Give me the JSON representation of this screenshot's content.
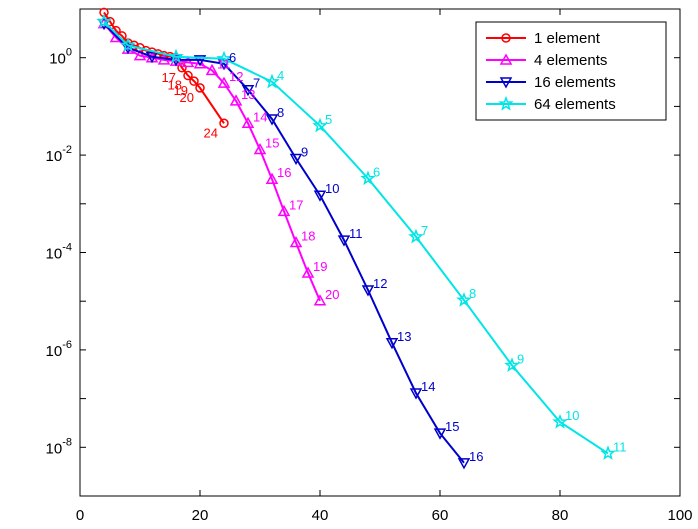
{
  "chart_data": {
    "type": "line",
    "y_scale": "log",
    "xlim": [
      0,
      100
    ],
    "ylim_exponents": [
      -9,
      1
    ],
    "x_ticks": [
      "0",
      "20",
      "40",
      "60",
      "80",
      "100"
    ],
    "y_tick_exponents": [
      "0",
      "-2",
      "-4",
      "-6",
      "-8"
    ],
    "y_tick_base": "10",
    "grid": false,
    "legend_position": "top-right",
    "series": [
      {
        "name": "1 element",
        "color": "#ff0000",
        "marker": "circle",
        "points": [
          {
            "x": 4,
            "y": 8.5
          },
          {
            "x": 5,
            "y": 5.5
          },
          {
            "x": 6,
            "y": 3.6
          },
          {
            "x": 7,
            "y": 2.8
          },
          {
            "x": 8,
            "y": 2.0
          },
          {
            "x": 9,
            "y": 1.8
          },
          {
            "x": 10,
            "y": 1.6
          },
          {
            "x": 11,
            "y": 1.4
          },
          {
            "x": 12,
            "y": 1.3
          },
          {
            "x": 13,
            "y": 1.2
          },
          {
            "x": 14,
            "y": 1.1
          },
          {
            "x": 15,
            "y": 1.05
          },
          {
            "x": 16,
            "y": 1.0
          },
          {
            "x": 17,
            "y": 0.62
          },
          {
            "x": 18,
            "y": 0.43
          },
          {
            "x": 19,
            "y": 0.33
          },
          {
            "x": 20,
            "y": 0.24
          },
          {
            "x": 24,
            "y": 0.045
          }
        ],
        "point_labels": [
          {
            "x": 17,
            "text": "17"
          },
          {
            "x": 18,
            "text": "18"
          },
          {
            "x": 19,
            "text": "19"
          },
          {
            "x": 20,
            "text": "20"
          },
          {
            "x": 24,
            "text": "24"
          }
        ]
      },
      {
        "name": "4 elements",
        "color": "#ff00ff",
        "marker": "triangle-up",
        "points": [
          {
            "x": 4,
            "y": 5.0
          },
          {
            "x": 6,
            "y": 2.6
          },
          {
            "x": 8,
            "y": 1.5
          },
          {
            "x": 10,
            "y": 1.1
          },
          {
            "x": 12,
            "y": 1.0
          },
          {
            "x": 14,
            "y": 0.9
          },
          {
            "x": 16,
            "y": 0.85
          },
          {
            "x": 18,
            "y": 0.8
          },
          {
            "x": 20,
            "y": 0.75
          },
          {
            "x": 22,
            "y": 0.55
          },
          {
            "x": 24,
            "y": 0.3
          },
          {
            "x": 26,
            "y": 0.13
          },
          {
            "x": 28,
            "y": 0.045
          },
          {
            "x": 30,
            "y": 0.013
          },
          {
            "x": 32,
            "y": 0.0032
          },
          {
            "x": 34,
            "y": 0.0007
          },
          {
            "x": 36,
            "y": 0.00016
          },
          {
            "x": 38,
            "y": 3.8e-05
          },
          {
            "x": 40,
            "y": 1.02e-05
          }
        ],
        "point_labels": [
          {
            "x": 22,
            "text": "11"
          },
          {
            "x": 24,
            "text": "12"
          },
          {
            "x": 26,
            "text": "13"
          },
          {
            "x": 28,
            "text": "14"
          },
          {
            "x": 30,
            "text": "15"
          },
          {
            "x": 32,
            "text": "16"
          },
          {
            "x": 34,
            "text": "17"
          },
          {
            "x": 36,
            "text": "18"
          },
          {
            "x": 38,
            "text": "19"
          },
          {
            "x": 40,
            "text": "20"
          }
        ]
      },
      {
        "name": "16 elements",
        "color": "#0000cc",
        "marker": "triangle-down",
        "points": [
          {
            "x": 4,
            "y": 5.0
          },
          {
            "x": 8,
            "y": 1.6
          },
          {
            "x": 12,
            "y": 1.05
          },
          {
            "x": 16,
            "y": 0.9
          },
          {
            "x": 20,
            "y": 0.9
          },
          {
            "x": 24,
            "y": 0.75
          },
          {
            "x": 28,
            "y": 0.22
          },
          {
            "x": 32,
            "y": 0.055
          },
          {
            "x": 36,
            "y": 0.0085
          },
          {
            "x": 40,
            "y": 0.0015
          },
          {
            "x": 44,
            "y": 0.00018
          },
          {
            "x": 48,
            "y": 1.7e-05
          },
          {
            "x": 52,
            "y": 1.4e-06
          },
          {
            "x": 56,
            "y": 1.3e-07
          },
          {
            "x": 60,
            "y": 1.95e-08
          },
          {
            "x": 64,
            "y": 4.8e-09
          }
        ],
        "point_labels": [
          {
            "x": 24,
            "text": "6"
          },
          {
            "x": 28,
            "text": "7"
          },
          {
            "x": 32,
            "text": "8"
          },
          {
            "x": 36,
            "text": "9"
          },
          {
            "x": 40,
            "text": "10"
          },
          {
            "x": 44,
            "text": "11"
          },
          {
            "x": 48,
            "text": "12"
          },
          {
            "x": 52,
            "text": "13"
          },
          {
            "x": 56,
            "text": "14"
          },
          {
            "x": 60,
            "text": "15"
          },
          {
            "x": 64,
            "text": "16"
          }
        ]
      },
      {
        "name": "64 elements",
        "color": "#00e5e5",
        "marker": "star",
        "points": [
          {
            "x": 4,
            "y": 5.5
          },
          {
            "x": 8,
            "y": 1.8
          },
          {
            "x": 16,
            "y": 1.05
          },
          {
            "x": 24,
            "y": 0.95
          },
          {
            "x": 32,
            "y": 0.32
          },
          {
            "x": 40,
            "y": 0.04
          },
          {
            "x": 48,
            "y": 0.0033
          },
          {
            "x": 56,
            "y": 0.00021
          },
          {
            "x": 64,
            "y": 1.05e-05
          },
          {
            "x": 72,
            "y": 4.8e-07
          },
          {
            "x": 80,
            "y": 3.3e-08
          },
          {
            "x": 88,
            "y": 7.5e-09
          }
        ],
        "point_labels": [
          {
            "x": 32,
            "text": "4"
          },
          {
            "x": 40,
            "text": "5"
          },
          {
            "x": 48,
            "text": "6"
          },
          {
            "x": 56,
            "text": "7"
          },
          {
            "x": 64,
            "text": "8"
          },
          {
            "x": 72,
            "text": "9"
          },
          {
            "x": 80,
            "text": "10"
          },
          {
            "x": 88,
            "text": "11"
          }
        ]
      }
    ]
  }
}
